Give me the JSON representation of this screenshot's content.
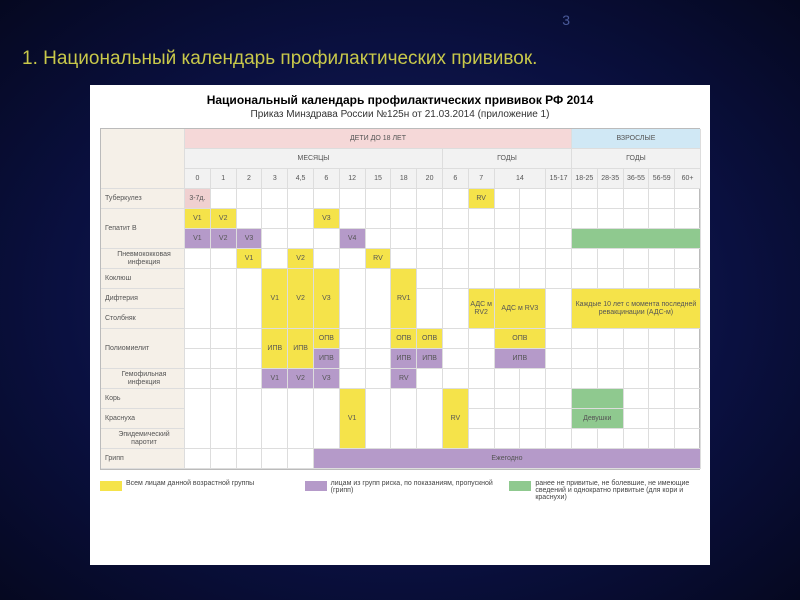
{
  "page_number": "3",
  "slide_title": "1. Национальный календарь профилактических прививок.",
  "chart": {
    "title": "Национальный календарь профилактических прививок РФ 2014",
    "subtitle": "Приказ Минздрава России №125н от 21.03.2014 (приложение 1)",
    "bg_color": "#ffffff",
    "colors": {
      "yellow": "#f5e34a",
      "purple": "#b59ac9",
      "green": "#8fc98f",
      "pink": "#f0d0d0",
      "hdr_child": "#f5d8d8",
      "hdr_adult": "#d0e8f5",
      "rowlabel": "#f5f0e8",
      "grid": "#dddddd"
    },
    "hdr_children": "ДЕТИ ДО 18 ЛЕТ",
    "hdr_adults": "ВЗРОСЛЫЕ",
    "hdr_months": "МЕСЯЦЫ",
    "hdr_years": "ГОДЫ",
    "hdr_years2": "ГОДЫ",
    "cols_months": [
      "0",
      "1",
      "2",
      "3",
      "4,5",
      "6",
      "12",
      "15",
      "18",
      "20"
    ],
    "cols_years": [
      "6",
      "7",
      "14",
      "15-17"
    ],
    "cols_adult": [
      "18-25",
      "28-35",
      "36-55",
      "56-59",
      "60+"
    ],
    "rows": {
      "tuberculosis": "Туберкулез",
      "hepatitis_b": "Гепатит В",
      "pneumococcal": "Пневмококковая инфекция",
      "pertussis": "Коклюш",
      "diphtheria": "Дифтерия",
      "tetanus": "Столбняк",
      "polio": "Полиомиелит",
      "hib": "Гемофильная инфекция",
      "measles": "Корь",
      "rubella": "Краснуха",
      "mumps": "Эпидемический паротит",
      "flu": "Грипп"
    },
    "cells": {
      "tb_37d": "3-7д.",
      "rv": "RV",
      "v1": "V1",
      "v2": "V2",
      "v3": "V3",
      "v4": "V4",
      "rv1": "RV1",
      "ipv": "ИПВ",
      "opv": "ОПВ",
      "ads_m_rv2": "АДС м RV2",
      "ads_m_rv3": "АДС м RV3",
      "ads_note": "Каждые 10 лет с момента последней ревакцинации (АДС-м)",
      "vl": "V1",
      "girls": "Девушки",
      "annual": "Ежегодно"
    },
    "legend": [
      {
        "color": "#f5e34a",
        "text": "Всем лицам данной возрастной группы"
      },
      {
        "color": "#b59ac9",
        "text": "лицам из групп риска, по показаниям, пропускной (грипп)"
      },
      {
        "color": "#8fc98f",
        "text": "ранее не привитые, не болевшие, не имеющие сведений и однократно привитые (для кори и краснухи)"
      }
    ]
  }
}
